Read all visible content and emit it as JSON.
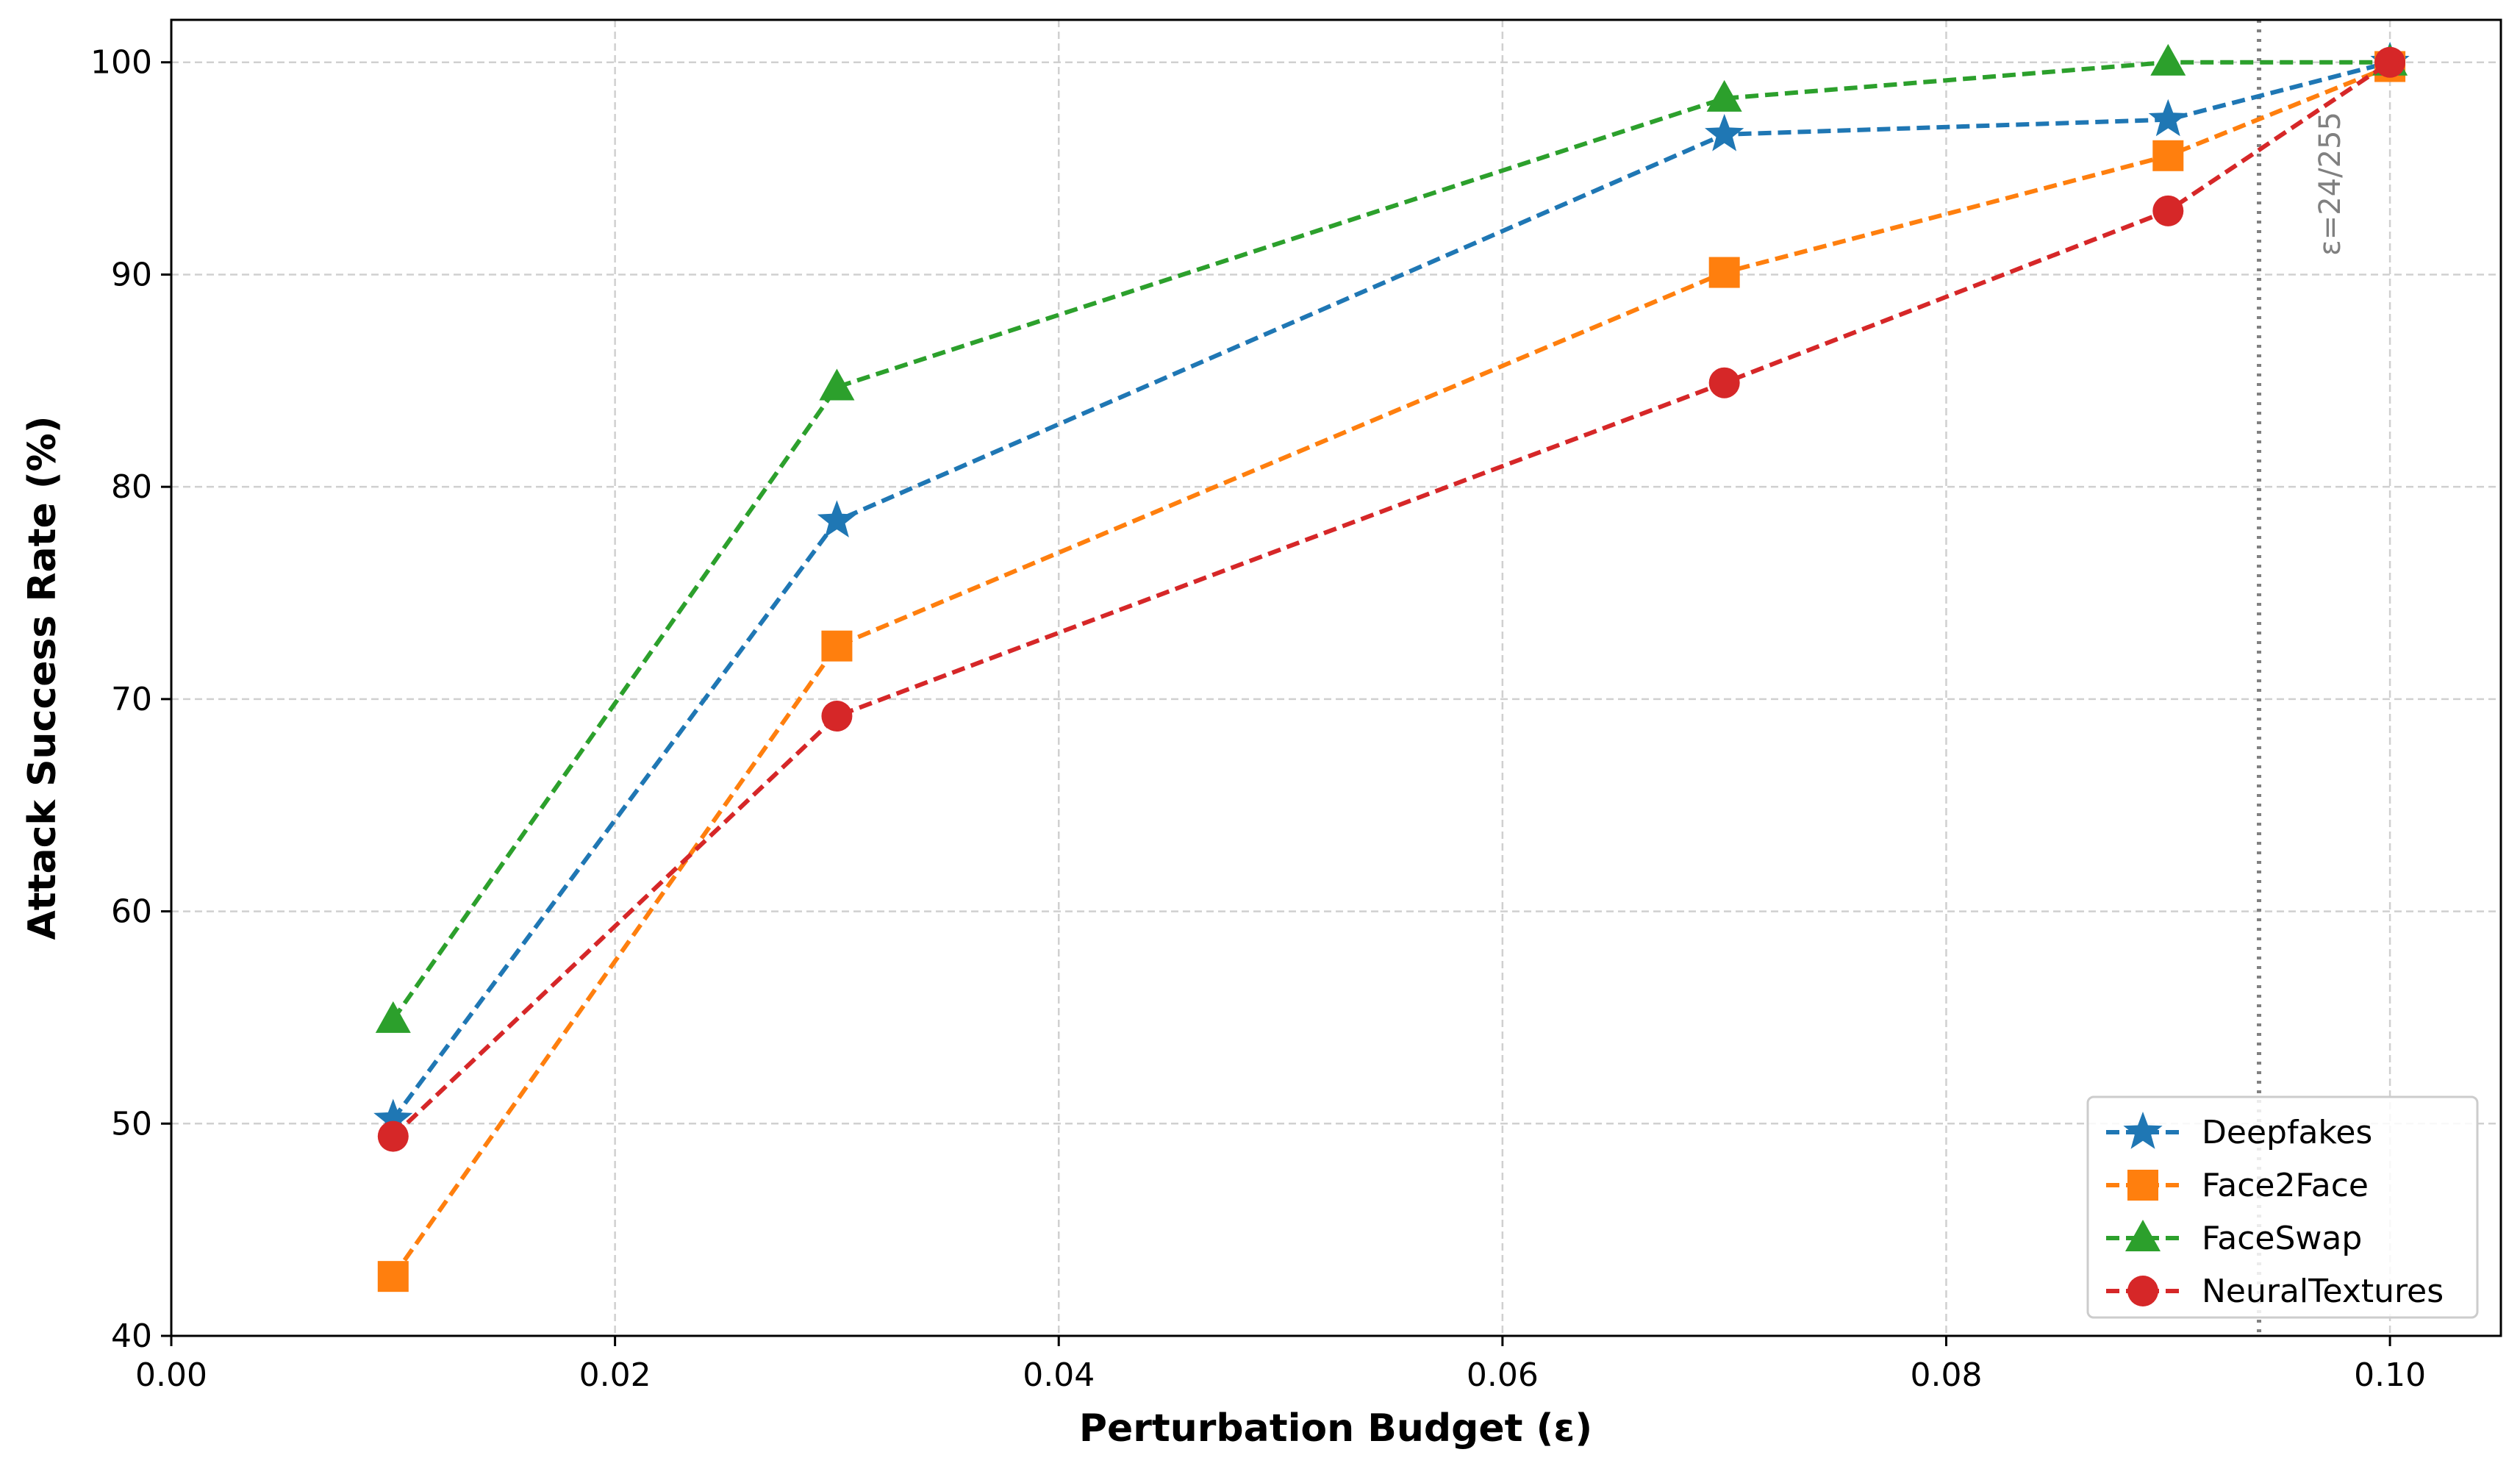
{
  "chart_data": {
    "type": "line",
    "title": "",
    "xlabel": "Perturbation Budget (ε)",
    "ylabel": "Attack Success Rate (%)",
    "xlim": [
      0.0,
      0.105
    ],
    "ylim": [
      40,
      102
    ],
    "xticks": [
      0.0,
      0.02,
      0.04,
      0.06,
      0.08,
      0.1
    ],
    "xtick_labels": [
      "0.00",
      "0.02",
      "0.04",
      "0.06",
      "0.08",
      "0.10"
    ],
    "yticks": [
      40,
      50,
      60,
      70,
      80,
      90,
      100
    ],
    "ytick_labels": [
      "40",
      "50",
      "60",
      "70",
      "80",
      "90",
      "100"
    ],
    "grid": true,
    "legend_position": "bottom-right",
    "x": [
      0.01,
      0.03,
      0.07,
      0.09,
      0.1
    ],
    "series": [
      {
        "name": "Deepfakes",
        "color": "#1f77b4",
        "marker": "star",
        "values": [
          50.2,
          78.4,
          96.6,
          97.3,
          100.0
        ]
      },
      {
        "name": "Face2Face",
        "color": "#ff7f0e",
        "marker": "square",
        "values": [
          42.8,
          72.5,
          90.1,
          95.6,
          99.8
        ]
      },
      {
        "name": "FaceSwap",
        "color": "#2ca02c",
        "marker": "triangle",
        "values": [
          54.9,
          84.7,
          98.3,
          100.0,
          100.0
        ]
      },
      {
        "name": "NeuralTextures",
        "color": "#d62728",
        "marker": "circle",
        "values": [
          49.4,
          69.2,
          84.9,
          93.0,
          100.0
        ]
      }
    ],
    "annotations": [
      {
        "type": "vline",
        "x": 0.0941,
        "label": "ε=24/255",
        "color": "#808080"
      }
    ]
  }
}
